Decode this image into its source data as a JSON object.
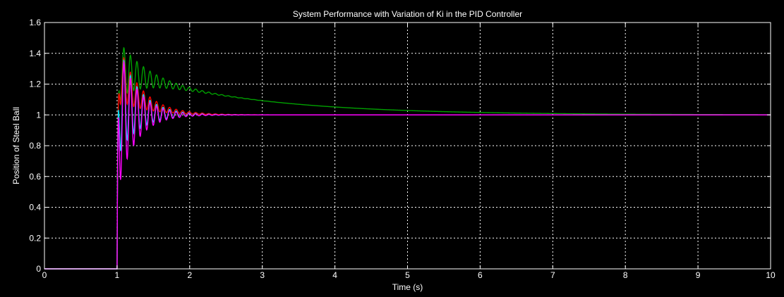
{
  "chart_data": {
    "type": "line",
    "title": "System Performance with Variation of Ki in the PID Controller",
    "xlabel": "Time (s)",
    "ylabel": "Position of Steel Ball",
    "xlim": [
      0,
      10
    ],
    "ylim": [
      0,
      1.6
    ],
    "xticks": [
      0,
      1,
      2,
      3,
      4,
      5,
      6,
      7,
      8,
      9,
      10
    ],
    "yticks": [
      0,
      0.2,
      0.4,
      0.6,
      0.8,
      1,
      1.2,
      1.4,
      1.6
    ],
    "grid": true,
    "background": "#000000",
    "axis_color": "#ffffff",
    "grid_color": "#ffffff",
    "series": [
      {
        "color": "#00a000",
        "step_time": 1.0,
        "overshoot_peak": 1.5,
        "slow_tail_amplitude": 0.3,
        "slow_tail_time_constant": 1.7,
        "oscillation_period": 0.09,
        "oscillation_decay": 0.35,
        "x": [
          0,
          1,
          1.1,
          1.2,
          1.3,
          1.5,
          1.8,
          2.0,
          2.5,
          3,
          4,
          5,
          6,
          7,
          8,
          9,
          10
        ],
        "y": [
          0,
          0,
          1.5,
          1.44,
          1.4,
          1.33,
          1.27,
          1.24,
          1.19,
          1.14,
          1.08,
          1.04,
          1.02,
          1.01,
          1.005,
          1.002,
          1.0
        ]
      },
      {
        "color": "#ff0000",
        "step_time": 1.0,
        "overshoot_peak": 1.5,
        "slow_tail_amplitude": 0.3,
        "slow_tail_time_constant": 0.32,
        "oscillation_period": 0.09,
        "oscillation_decay": 0.3,
        "x": [
          0,
          1,
          1.1,
          1.2,
          1.3,
          1.5,
          1.8,
          2.0,
          2.3,
          2.6,
          3,
          10
        ],
        "y": [
          0,
          0,
          1.48,
          1.42,
          1.33,
          1.2,
          1.09,
          1.05,
          1.02,
          1.0,
          1.0,
          1.0
        ]
      },
      {
        "color": "#00e0ff",
        "step_time": 1.0,
        "overshoot_peak": 1.5,
        "slow_tail_amplitude": 0.12,
        "slow_tail_time_constant": 0.25,
        "oscillation_period": 0.09,
        "oscillation_decay": 0.28,
        "x": [
          0,
          1,
          1.08,
          1.2,
          1.4,
          1.6,
          1.8,
          2.0,
          2.5,
          10
        ],
        "y": [
          0,
          0,
          1.46,
          1.2,
          1.12,
          1.06,
          1.02,
          1.0,
          1.0,
          1.0
        ]
      },
      {
        "color": "#ff00ff",
        "step_time": 1.0,
        "overshoot_peak": 1.5,
        "slow_tail_amplitude": 0.0,
        "slow_tail_time_constant": 0.2,
        "oscillation_period": 0.09,
        "oscillation_decay": 0.25,
        "x": [
          0,
          1,
          1.05,
          1.1,
          1.2,
          1.3,
          1.5,
          1.8,
          2.0,
          2.5,
          10
        ],
        "y": [
          0,
          0,
          1.5,
          0.9,
          1.25,
          0.88,
          1.08,
          0.97,
          1.0,
          1.0,
          1.0
        ]
      }
    ]
  }
}
